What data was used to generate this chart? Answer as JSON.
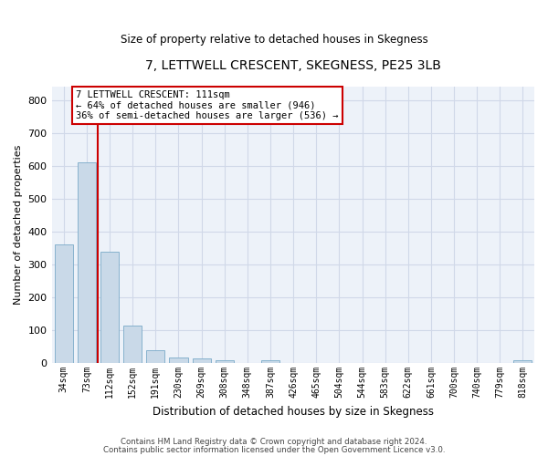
{
  "title": "7, LETTWELL CRESCENT, SKEGNESS, PE25 3LB",
  "subtitle": "Size of property relative to detached houses in Skegness",
  "xlabel": "Distribution of detached houses by size in Skegness",
  "ylabel": "Number of detached properties",
  "categories": [
    "34sqm",
    "73sqm",
    "112sqm",
    "152sqm",
    "191sqm",
    "230sqm",
    "269sqm",
    "308sqm",
    "348sqm",
    "387sqm",
    "426sqm",
    "465sqm",
    "504sqm",
    "544sqm",
    "583sqm",
    "622sqm",
    "661sqm",
    "700sqm",
    "740sqm",
    "779sqm",
    "818sqm"
  ],
  "values": [
    360,
    612,
    338,
    115,
    38,
    18,
    15,
    9,
    0,
    9,
    0,
    0,
    0,
    0,
    0,
    0,
    0,
    0,
    0,
    0,
    8
  ],
  "bar_color": "#c9d9e8",
  "bar_edge_color": "#7aaac8",
  "grid_color": "#d0d8e8",
  "background_color": "#edf2f9",
  "vline_color": "#cc0000",
  "annotation_text": "7 LETTWELL CRESCENT: 111sqm\n← 64% of detached houses are smaller (946)\n36% of semi-detached houses are larger (536) →",
  "annotation_box_color": "#cc0000",
  "ylim": [
    0,
    840
  ],
  "yticks": [
    0,
    100,
    200,
    300,
    400,
    500,
    600,
    700,
    800
  ],
  "footer_line1": "Contains HM Land Registry data © Crown copyright and database right 2024.",
  "footer_line2": "Contains public sector information licensed under the Open Government Licence v3.0."
}
